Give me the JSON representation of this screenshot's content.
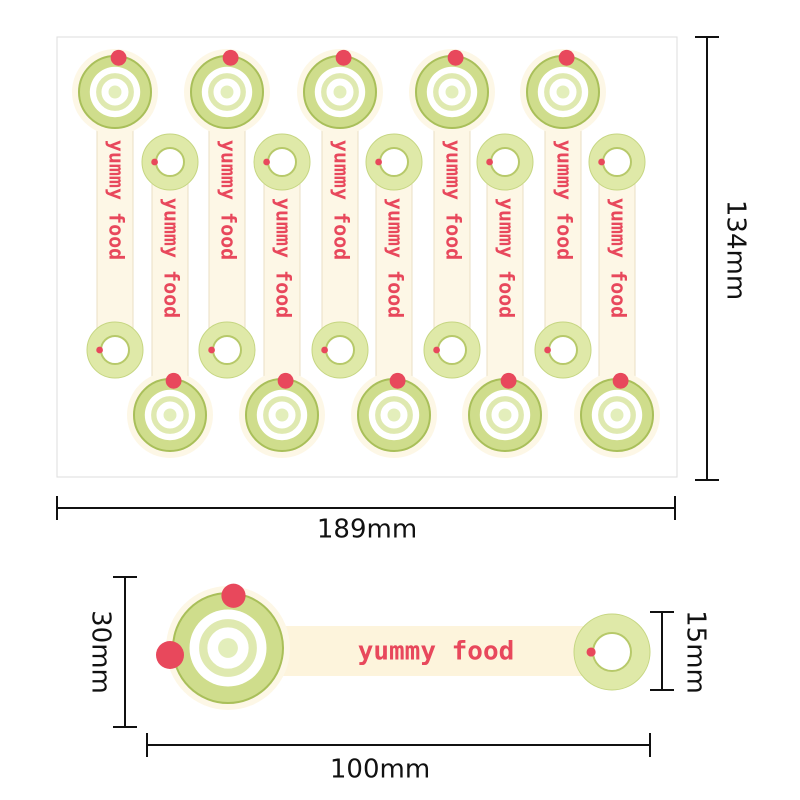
{
  "sheet": {
    "height_label": "134mm",
    "width_label": "189mm",
    "sticker_text": "yummy food"
  },
  "single_sticker": {
    "height_label": "30mm",
    "end_height_label": "15mm",
    "width_label": "100mm",
    "text": "yummy food"
  }
}
